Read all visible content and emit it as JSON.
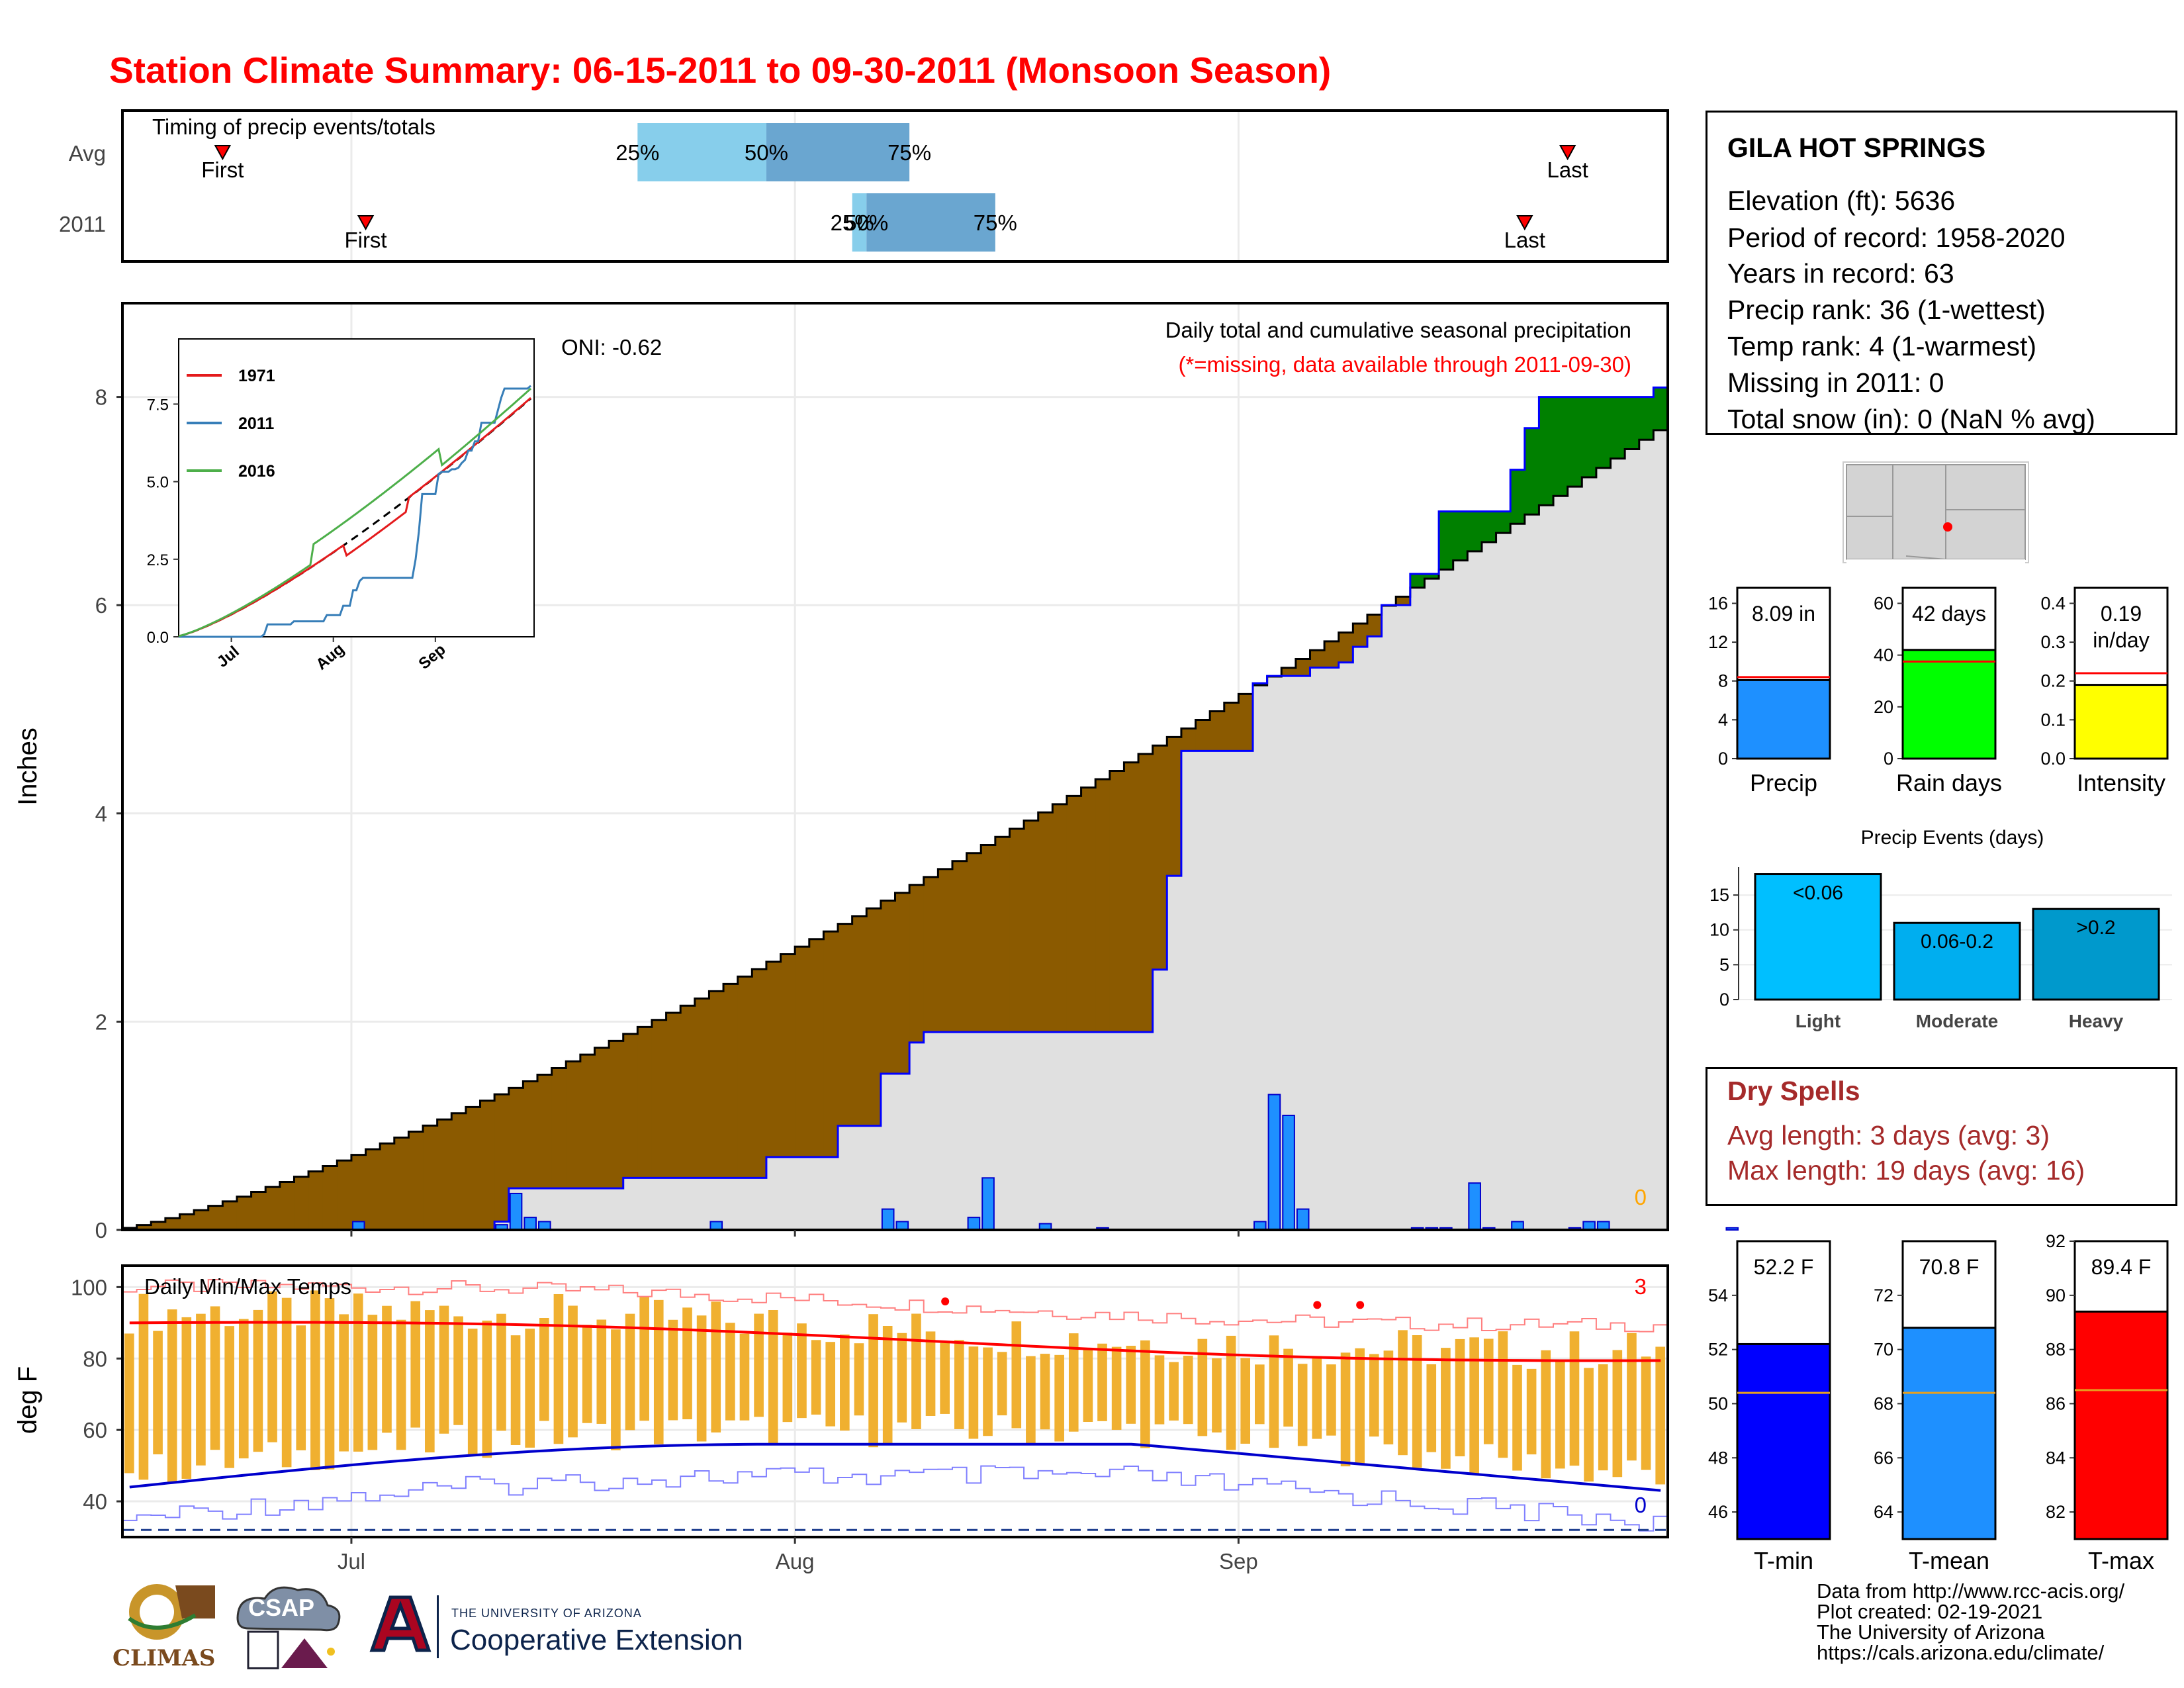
{
  "title": "Station Climate Summary: 06-15-2011 to 09-30-2011 (Monsoon Season)",
  "timing": {
    "label": "Timing of precip events/totals",
    "rows": [
      "Avg",
      "2011"
    ],
    "avg": {
      "first": "2011-06-22",
      "p25": "2011-07-21",
      "p50": "2011-07-30",
      "p75": "2011-08-09",
      "last": "2011-09-24"
    },
    "y2011": {
      "first": "2011-07-02",
      "p25": "2011-08-05",
      "p50": "2011-08-06",
      "p75": "2011-08-15",
      "last": "2011-09-21"
    },
    "marker_labels": {
      "first": "First",
      "last": "Last",
      "p25": "25%",
      "p50": "50%",
      "p75": "75%"
    }
  },
  "main_chart": {
    "ylabel": "Inches",
    "annotation": "Daily total and cumulative seasonal precipitation",
    "missing_note": "(*=missing, data available through 2011-09-30)",
    "oni": "ONI: -0.62",
    "missing_count": "0",
    "x_ticks": [
      "Jul",
      "Aug",
      "Sep"
    ],
    "y_ticks": [
      "0",
      "2",
      "4",
      "6",
      "8"
    ]
  },
  "inset": {
    "legend": [
      "1971",
      "2011",
      "2016"
    ],
    "y_ticks": [
      "0.0",
      "2.5",
      "5.0",
      "7.5"
    ],
    "x_ticks": [
      "Jul",
      "Aug",
      "Sep"
    ]
  },
  "temp_chart": {
    "label": "Daily Min/Max Temps",
    "ylabel": "deg F",
    "y_ticks": [
      "40",
      "60",
      "80",
      "100"
    ],
    "x_ticks": [
      "Jul",
      "Aug",
      "Sep"
    ],
    "count_hot": "3",
    "count_cold": "0"
  },
  "station": {
    "name": "GILA HOT SPRINGS",
    "elevation": "Elevation (ft): 5636",
    "period": "Period of record: 1958-2020",
    "years": "Years in record: 63",
    "precip_rank": "Precip rank: 36 (1-wettest)",
    "temp_rank": "Temp rank: 4 (1-warmest)",
    "missing": "Missing in 2011: 0",
    "snow": "Total snow (in): 0 (NaN % avg)"
  },
  "summary_bars": [
    {
      "label": "Precip",
      "value": 8.09,
      "avg": 8.4,
      "text": "8.09 in",
      "color": "#1e90ff",
      "ymax": 16,
      "ticks": [
        "0",
        "4",
        "8",
        "12",
        "16"
      ]
    },
    {
      "label": "Rain days",
      "value": 42,
      "avg": 37.5,
      "text": "42 days",
      "color": "#00ff00",
      "ymax": 60,
      "ticks": [
        "0",
        "20",
        "40",
        "60"
      ]
    },
    {
      "label": "Intensity",
      "value": 0.19,
      "avg": 0.22,
      "text": "0.19",
      "text2": "in/day",
      "color": "#ffff00",
      "ymax": 0.4,
      "ticks": [
        "0.0",
        "0.1",
        "0.2",
        "0.3",
        "0.4"
      ]
    }
  ],
  "precip_events": {
    "title": "Precip Events (days)",
    "y_ticks": [
      "0",
      "5",
      "10",
      "15"
    ],
    "bars": [
      {
        "label": "Light",
        "value": 18,
        "text": "<0.06",
        "color": "#00bfff"
      },
      {
        "label": "Moderate",
        "value": 11,
        "text": "0.06-0.2",
        "color": "#00aeef"
      },
      {
        "label": "Heavy",
        "value": 13,
        "text": ">0.2",
        "color": "#0099cc"
      }
    ]
  },
  "dry_spells": {
    "title": "Dry Spells",
    "avg": "Avg length: 3 days (avg: 3)",
    "max": "Max length: 19 days (avg: 16)"
  },
  "temp_bars": [
    {
      "label": "T-min",
      "value": 52.2,
      "avg": 50.4,
      "text": "52.2 F",
      "color": "#0000ff",
      "ymin": 45,
      "ymax": 56,
      "ticks": [
        "46",
        "48",
        "50",
        "52",
        "54"
      ]
    },
    {
      "label": "T-mean",
      "value": 70.8,
      "avg": 68.4,
      "text": "70.8 F",
      "color": "#1e90ff",
      "ymin": 63,
      "ymax": 74,
      "ticks": [
        "64",
        "66",
        "68",
        "70",
        "72"
      ]
    },
    {
      "label": "T-max",
      "value": 89.4,
      "avg": 86.5,
      "text": "89.4 F",
      "color": "#ff0000",
      "ymin": 81,
      "ymax": 92,
      "ticks": [
        "82",
        "84",
        "86",
        "88",
        "90",
        "92"
      ]
    }
  ],
  "credits": [
    "Data from http://www.rcc-acis.org/",
    "Plot created: 02-19-2021",
    "The University of Arizona",
    "https://cals.arizona.edu/climate/"
  ],
  "logos": {
    "climas": "CLIMAS",
    "csap": "CSAP",
    "ua_top": "THE UNIVERSITY OF ARIZONA",
    "ua_bottom": "Cooperative Extension"
  },
  "colors": {
    "title": "#ff0000",
    "deficit": "#8b5a00",
    "surplus": "#008000",
    "cumulative_bg": "#e0e0e0",
    "daily_bar": "#1e90ff",
    "temp_bar": "#f0b030",
    "tmax_avg": "#ff0000",
    "tmin_avg": "#0000cc",
    "dry_spells": "#a52a2a"
  }
}
